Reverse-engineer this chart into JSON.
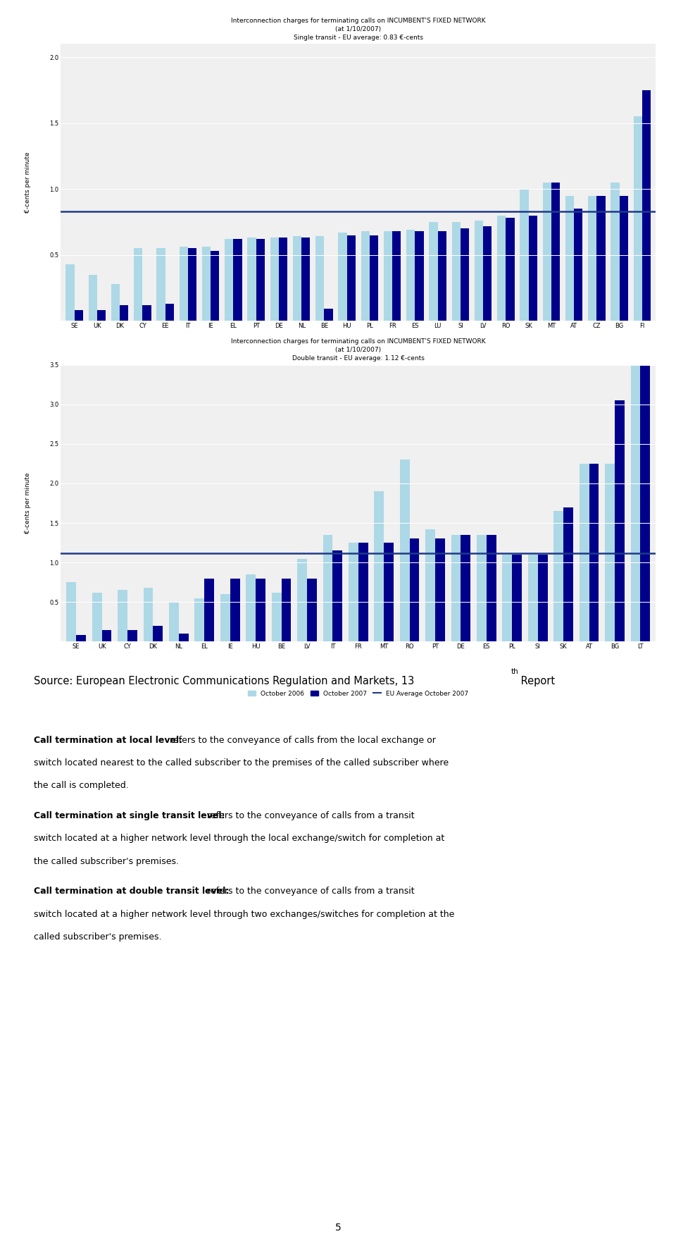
{
  "chart1": {
    "title_line1": "Interconnection charges for terminating calls on INCUMBENT'S FIXED NETWORK",
    "title_line2": "(at 1/10/2007)",
    "title_line3": "Single transit - EU average: 0.83 €-cents",
    "ylabel": "€-cents per minute",
    "eu_avg": 0.83,
    "ylim": [
      0,
      2.1
    ],
    "yticks": [
      0.5,
      1.0,
      1.5,
      2.0
    ],
    "categories": [
      "SE",
      "UK",
      "DK",
      "CY",
      "EE",
      "IT",
      "IE",
      "EL",
      "PT",
      "DE",
      "NL",
      "BE",
      "HU",
      "PL",
      "FR",
      "ES",
      "LU",
      "SI",
      "LV",
      "RO",
      "SK",
      "MT",
      "AT",
      "CZ",
      "BG",
      "FI"
    ],
    "oct2006": [
      0.43,
      0.35,
      0.28,
      0.55,
      0.55,
      0.56,
      0.56,
      0.62,
      0.63,
      0.63,
      0.64,
      0.64,
      0.67,
      0.68,
      0.68,
      0.69,
      0.75,
      0.75,
      0.76,
      0.8,
      1.0,
      1.05,
      0.95,
      0.95,
      1.05,
      1.55
    ],
    "oct2007": [
      0.08,
      0.08,
      0.12,
      0.12,
      0.13,
      0.55,
      0.53,
      0.62,
      0.62,
      0.63,
      0.63,
      0.09,
      0.65,
      0.65,
      0.68,
      0.68,
      0.68,
      0.7,
      0.72,
      0.78,
      0.8,
      1.05,
      0.85,
      0.95,
      0.95,
      1.75
    ],
    "color2006": "#ADD8E6",
    "color2007": "#00008B",
    "eu_avg_color": "#1F3A8A"
  },
  "chart2": {
    "title_line1": "Interconnection charges for terminating calls on INCUMBENT'S FIXED NETWORK",
    "title_line2": "(at 1/10/2007)",
    "title_line3": "Double transit - EU average: 1.12 €-cents",
    "ylabel": "€-cents per minute",
    "eu_avg": 1.12,
    "ylim": [
      0,
      3.5
    ],
    "yticks": [
      0.5,
      1.0,
      1.5,
      2.0,
      2.5,
      3.0,
      3.5
    ],
    "categories": [
      "SE",
      "UK",
      "CY",
      "DK",
      "NL",
      "EL",
      "IE",
      "HU",
      "BE",
      "LV",
      "IT",
      "FR",
      "MT",
      "RO",
      "PT",
      "DE",
      "ES",
      "PL",
      "SI",
      "SK",
      "AT",
      "BG",
      "LT"
    ],
    "oct2006": [
      0.75,
      0.62,
      0.65,
      0.68,
      0.5,
      0.55,
      0.6,
      0.85,
      0.62,
      1.05,
      1.35,
      1.25,
      1.9,
      2.3,
      1.42,
      1.35,
      1.35,
      1.1,
      1.1,
      1.65,
      2.25,
      2.25,
      3.5
    ],
    "oct2007": [
      0.08,
      0.15,
      0.15,
      0.2,
      0.1,
      0.8,
      0.8,
      0.8,
      0.8,
      0.8,
      1.15,
      1.25,
      1.25,
      1.3,
      1.3,
      1.35,
      1.35,
      1.1,
      1.1,
      1.7,
      2.25,
      3.05,
      3.5
    ],
    "color2006": "#ADD8E6",
    "color2007": "#00008B",
    "eu_avg_color": "#1F3A8A"
  },
  "source_text": "Source: European Electronic Communications Regulation and Markets, 13",
  "source_superscript": "th",
  "source_suffix": " Report",
  "legend_labels": [
    "October 2006",
    "October 2007",
    "EU Average October 2007"
  ],
  "text_blocks": [
    {
      "bold_part": "Call termination at local level:",
      "normal_part": " refers to the conveyance of calls from the local exchange or switch located nearest to the called subscriber to the premises of the called subscriber where the call is completed."
    },
    {
      "bold_part": "Call termination at single transit level:",
      "normal_part": " refers to the conveyance of calls from a transit switch located at a higher network level through the local exchange/switch for completion at the called subscriber's premises."
    },
    {
      "bold_part": "Call termination at double transit level:",
      "normal_part": " refers to the conveyance of calls from a transit switch located at a higher network level through two exchanges/switches for completion at the called subscriber's premises."
    }
  ],
  "page_number": "5",
  "bg_color": "#FFFFFF",
  "chart_bg": "#F0F0F0"
}
